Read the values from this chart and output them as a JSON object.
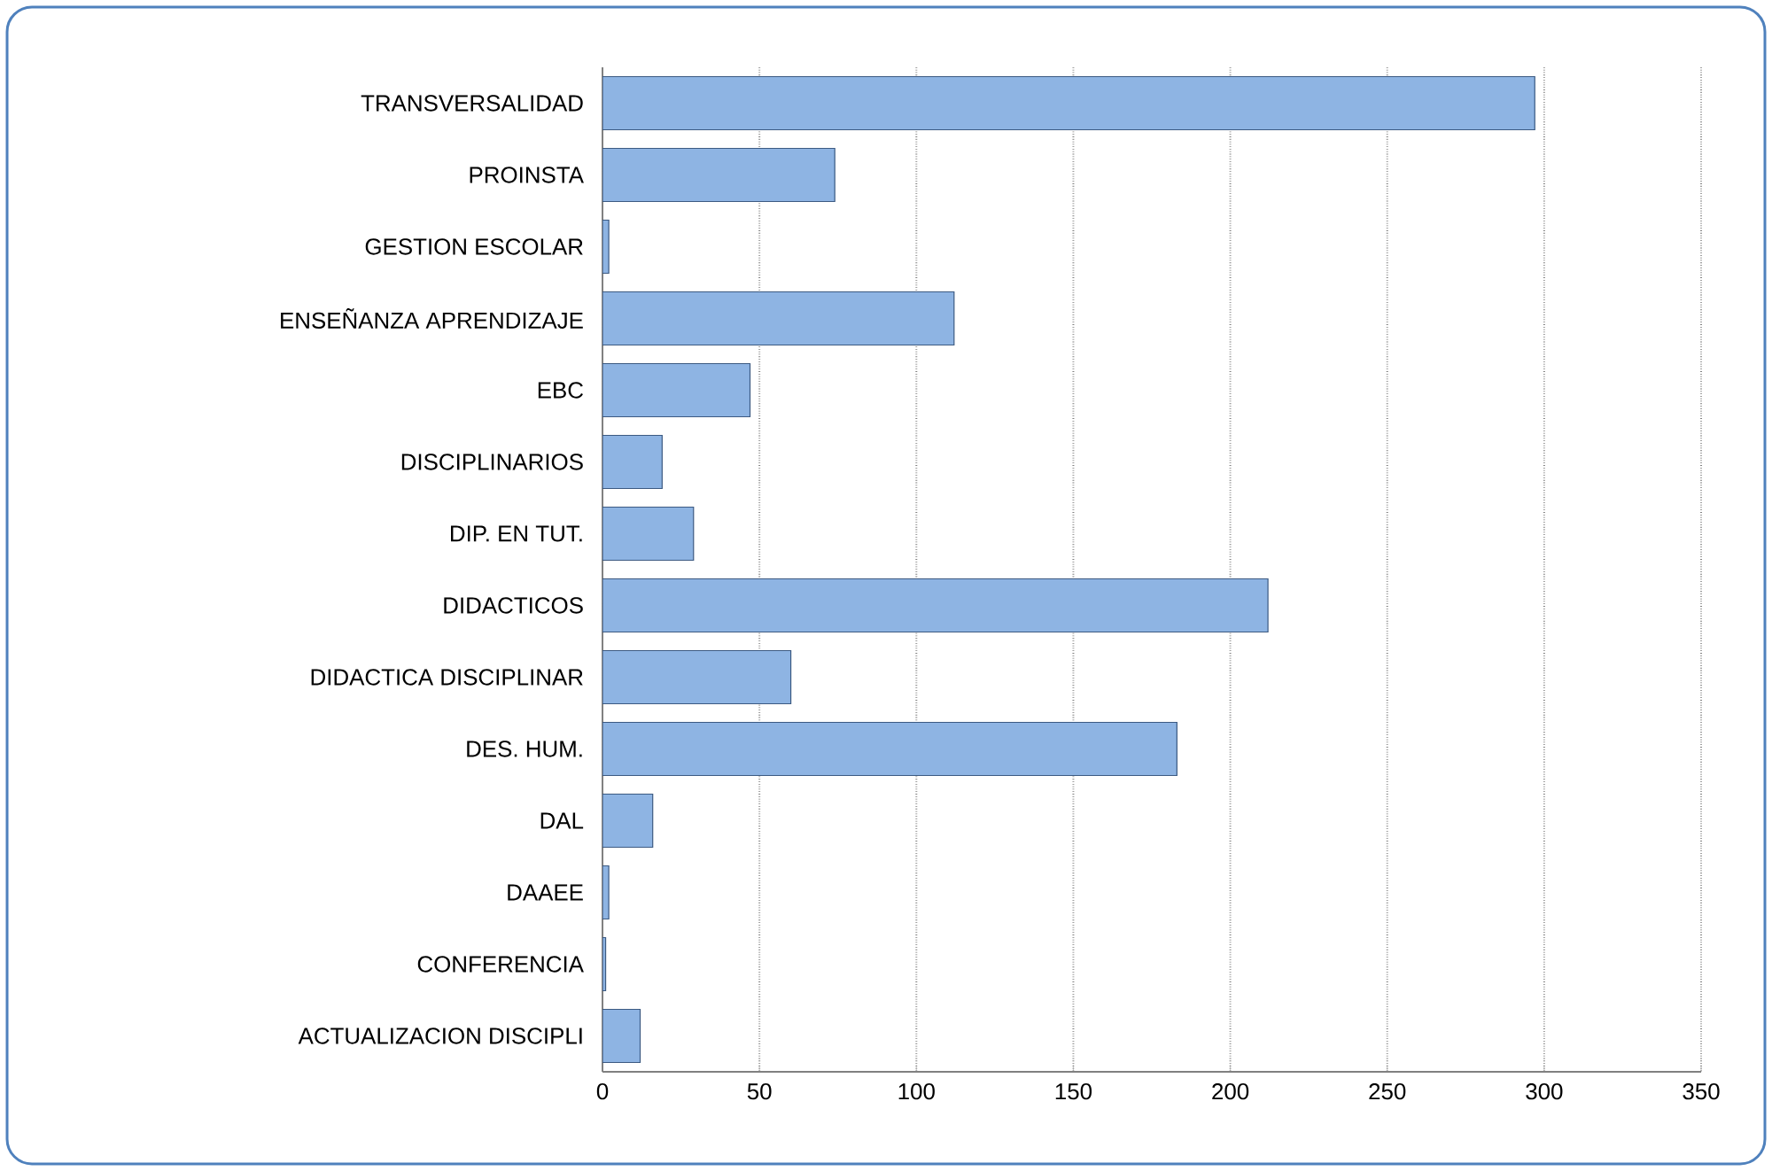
{
  "chart_data": {
    "type": "bar",
    "orientation": "horizontal",
    "categories": [
      "TRANSVERSALIDAD",
      "PROINSTA",
      "GESTION ESCOLAR",
      "ENSEÑANZA APRENDIZAJE",
      "EBC",
      "DISCIPLINARIOS",
      "DIP. EN TUT.",
      "DIDACTICOS",
      "DIDACTICA DISCIPLINAR",
      "DES. HUM.",
      "DAL",
      "DAAEE",
      "CONFERENCIA",
      "ACTUALIZACION DISCIPLI"
    ],
    "values": [
      297,
      74,
      2,
      112,
      47,
      19,
      29,
      212,
      60,
      183,
      16,
      2,
      1,
      12
    ],
    "color": "#8eb4e3",
    "xlim": [
      0,
      350
    ],
    "xticks": [
      0,
      50,
      100,
      150,
      200,
      250,
      300,
      350
    ],
    "grid": "x"
  }
}
